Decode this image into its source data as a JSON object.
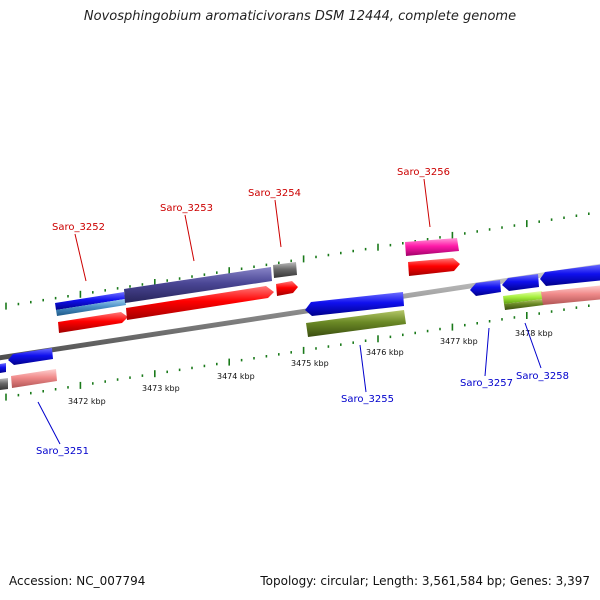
{
  "header": {
    "title": "Novosphingobium aromaticivorans DSM 12444, complete genome"
  },
  "footer": {
    "accession": "Accession: NC_007794",
    "summary": "Topology: circular; Length: 3,561,584 bp; Genes: 3,397"
  },
  "map": {
    "scale_labels": [
      "3472 kbp",
      "3473 kbp",
      "3474 kbp",
      "3475 kbp",
      "3476 kbp",
      "3477 kbp",
      "3478 kbp"
    ],
    "top_genes": [
      "Saro_3252",
      "Saro_3253",
      "Saro_3254",
      "Saro_3256"
    ],
    "bottom_genes": [
      "Saro_3251",
      "Saro_3255",
      "Saro_3257",
      "Saro_3258"
    ],
    "colors": {
      "forward_label": "#cc0000",
      "reverse_label": "#0000cc",
      "tick": "#1a7a1a",
      "backbone": "#888888"
    }
  }
}
